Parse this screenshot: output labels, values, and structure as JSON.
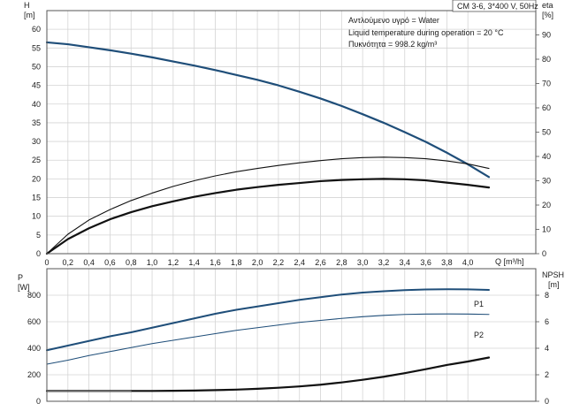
{
  "chart_data": [
    {
      "type": "line",
      "panel": "head-efficiency",
      "title": "CM 3-6, 3*400 V, 50Hz",
      "ylabel_left": "H",
      "ylabel_left_unit": "[m]",
      "ylabel_right": "eta",
      "ylabel_right_unit": "[%]",
      "xlabel": "Q [m³/h]",
      "xlim": [
        0,
        4.2
      ],
      "ylim_left": [
        0,
        65
      ],
      "ylim_right": [
        0,
        100
      ],
      "x_ticks": [
        "0",
        "0,2",
        "0,4",
        "0,6",
        "0,8",
        "1,0",
        "1,2",
        "1,4",
        "1,6",
        "1,8",
        "2,0",
        "2,2",
        "2,4",
        "2,6",
        "2,8",
        "3,0",
        "3,2",
        "3,4",
        "3,6",
        "3,8",
        "4,0"
      ],
      "y_ticks_left": [
        "0",
        "5",
        "10",
        "15",
        "20",
        "25",
        "30",
        "35",
        "40",
        "45",
        "50",
        "55",
        "60"
      ],
      "y_ticks_right": [
        "0",
        "10",
        "20",
        "30",
        "40",
        "50",
        "60",
        "70",
        "80",
        "90"
      ],
      "annotations": [
        "Αντλούμενο υγρό = Water",
        "Liquid temperature during operation = 20 °C",
        "Πυκνότητα = 998.2 kg/m³"
      ],
      "grid": true,
      "series": [
        {
          "axis": "left",
          "color": "#1f4e79",
          "width": 2.2,
          "dash": false,
          "x": [
            0,
            0.2,
            0.4,
            0.6,
            0.8,
            1.0,
            1.2,
            1.4,
            1.6,
            1.8,
            2.0,
            2.2,
            2.4,
            2.6,
            2.8,
            3.0,
            3.2,
            3.4,
            3.6,
            3.8,
            4.0,
            4.2
          ],
          "y": [
            56.5,
            56.0,
            55.2,
            54.4,
            53.5,
            52.5,
            51.4,
            50.3,
            49.1,
            47.8,
            46.5,
            45.0,
            43.3,
            41.5,
            39.5,
            37.3,
            35.0,
            32.5,
            29.9,
            27.0,
            23.9,
            20.5
          ]
        },
        {
          "axis": "left",
          "color": "#111111",
          "width": 1.1,
          "dash": false,
          "x": [
            0,
            0.2,
            0.4,
            0.6,
            0.8,
            1.0,
            1.2,
            1.4,
            1.6,
            1.8,
            2.0,
            2.2,
            2.4,
            2.6,
            2.8,
            3.0,
            3.2,
            3.4,
            3.6,
            3.8,
            4.0,
            4.2
          ],
          "y": [
            0,
            5.2,
            9.0,
            11.8,
            14.2,
            16.2,
            18.0,
            19.5,
            20.8,
            21.9,
            22.8,
            23.6,
            24.3,
            24.9,
            25.4,
            25.7,
            25.8,
            25.7,
            25.4,
            24.8,
            24.0,
            22.8
          ]
        },
        {
          "axis": "left",
          "color": "#111111",
          "width": 2.2,
          "dash": false,
          "x": [
            0,
            0.2,
            0.4,
            0.6,
            0.8,
            1.0,
            1.2,
            1.4,
            1.6,
            1.8,
            2.0,
            2.2,
            2.4,
            2.6,
            2.8,
            3.0,
            3.2,
            3.4,
            3.6,
            3.8,
            4.0,
            4.2
          ],
          "y": [
            0,
            3.9,
            6.8,
            9.2,
            11.1,
            12.7,
            14.0,
            15.2,
            16.2,
            17.1,
            17.8,
            18.4,
            18.9,
            19.4,
            19.7,
            19.9,
            20.0,
            19.9,
            19.6,
            19.0,
            18.4,
            17.7
          ]
        }
      ]
    },
    {
      "type": "line",
      "panel": "power-npsh",
      "ylabel_left": "P",
      "ylabel_left_unit": "[W]",
      "ylabel_right": "NPSH",
      "ylabel_right_unit": "[m]",
      "xlim": [
        0,
        4.2
      ],
      "ylim_left": [
        0,
        1000
      ],
      "ylim_right": [
        0,
        10
      ],
      "y_ticks_left": [
        "0",
        "200",
        "400",
        "600",
        "800"
      ],
      "y_ticks_right": [
        "0",
        "2",
        "4",
        "6",
        "8"
      ],
      "grid": true,
      "series": [
        {
          "name": "P1",
          "axis": "left",
          "color": "#1f4e79",
          "width": 2.0,
          "dash": false,
          "x": [
            0,
            0.2,
            0.4,
            0.6,
            0.8,
            1.0,
            1.2,
            1.4,
            1.6,
            1.8,
            2.0,
            2.2,
            2.4,
            2.6,
            2.8,
            3.0,
            3.2,
            3.4,
            3.6,
            3.8,
            4.0,
            4.2
          ],
          "y": [
            385,
            420,
            455,
            490,
            520,
            555,
            590,
            625,
            660,
            690,
            715,
            740,
            765,
            785,
            805,
            820,
            830,
            838,
            843,
            845,
            844,
            840
          ]
        },
        {
          "name": "P2",
          "axis": "left",
          "color": "#1f4e79",
          "width": 1.1,
          "dash": false,
          "x": [
            0,
            0.2,
            0.4,
            0.6,
            0.8,
            1.0,
            1.2,
            1.4,
            1.6,
            1.8,
            2.0,
            2.2,
            2.4,
            2.6,
            2.8,
            3.0,
            3.2,
            3.4,
            3.6,
            3.8,
            4.0,
            4.2
          ],
          "y": [
            280,
            310,
            345,
            375,
            405,
            435,
            460,
            485,
            510,
            535,
            555,
            575,
            595,
            610,
            625,
            638,
            648,
            655,
            658,
            659,
            658,
            655
          ]
        },
        {
          "axis": "right",
          "color": "#111111",
          "width": 2.2,
          "dash": false,
          "x": [
            0,
            0.2,
            0.4,
            0.6,
            0.8,
            1.0,
            1.2,
            1.4,
            1.6,
            1.8,
            2.0,
            2.2,
            2.4,
            2.6,
            2.8,
            3.0,
            3.2,
            3.4,
            3.6,
            3.8,
            4.0,
            4.2
          ],
          "y": [
            0.78,
            0.78,
            0.78,
            0.78,
            0.78,
            0.78,
            0.79,
            0.81,
            0.84,
            0.88,
            0.94,
            1.02,
            1.12,
            1.25,
            1.42,
            1.62,
            1.85,
            2.12,
            2.42,
            2.74,
            3.0,
            3.3
          ]
        },
        {
          "axis": "left",
          "color": "#888888",
          "width": 0.9,
          "dash": false,
          "x": [
            0,
            0.8
          ],
          "y": [
            78,
            78
          ]
        }
      ]
    }
  ]
}
